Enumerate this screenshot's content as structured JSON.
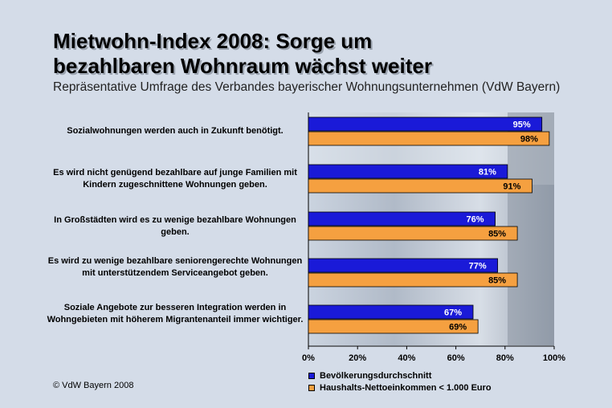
{
  "title_line1": "Mietwohn-Index 2008: Sorge um",
  "title_line2": "bezahlbaren Wohnraum wächst weiter",
  "subtitle": "Repräsentative Umfrage des Verbandes bayerischer Wohnungsunternehmen (VdW Bayern)",
  "copyright": "© VdW Bayern 2008",
  "colors": {
    "blue": "#1a1ad8",
    "orange": "#f5a040",
    "background": "#d4dce8"
  },
  "chart_data": {
    "type": "bar",
    "orientation": "horizontal",
    "categories": [
      "Sozialwohnungen werden auch in Zukunft benötigt.",
      "Es wird nicht genügend bezahlbare auf junge Familien mit Kindern zugeschnittene Wohnungen geben.",
      "In Großstädten wird es zu wenige bezahlbare Wohnungen geben.",
      "Es wird zu wenige bezahlbare seniorengerechte Wohnungen mit unterstützendem Serviceangebot geben.",
      "Soziale Angebote zur besseren Integration werden in Wohngebieten mit höherem Migrantenanteil immer wichtiger."
    ],
    "series": [
      {
        "name": "Bevölkerungsdurchschnitt",
        "color": "#1a1ad8",
        "values": [
          95,
          81,
          76,
          77,
          67
        ],
        "labels": [
          "95%",
          "81%",
          "76%",
          "77%",
          "67%"
        ]
      },
      {
        "name": "Haushalts-Nettoeinkommen < 1.000 Euro",
        "color": "#f5a040",
        "values": [
          98,
          91,
          85,
          85,
          69
        ],
        "labels": [
          "98%",
          "91%",
          "85%",
          "85%",
          "69%"
        ]
      }
    ],
    "xlim": [
      0,
      100
    ],
    "xticks": [
      "0%",
      "20%",
      "40%",
      "60%",
      "80%",
      "100%"
    ],
    "legend": "bottom"
  }
}
